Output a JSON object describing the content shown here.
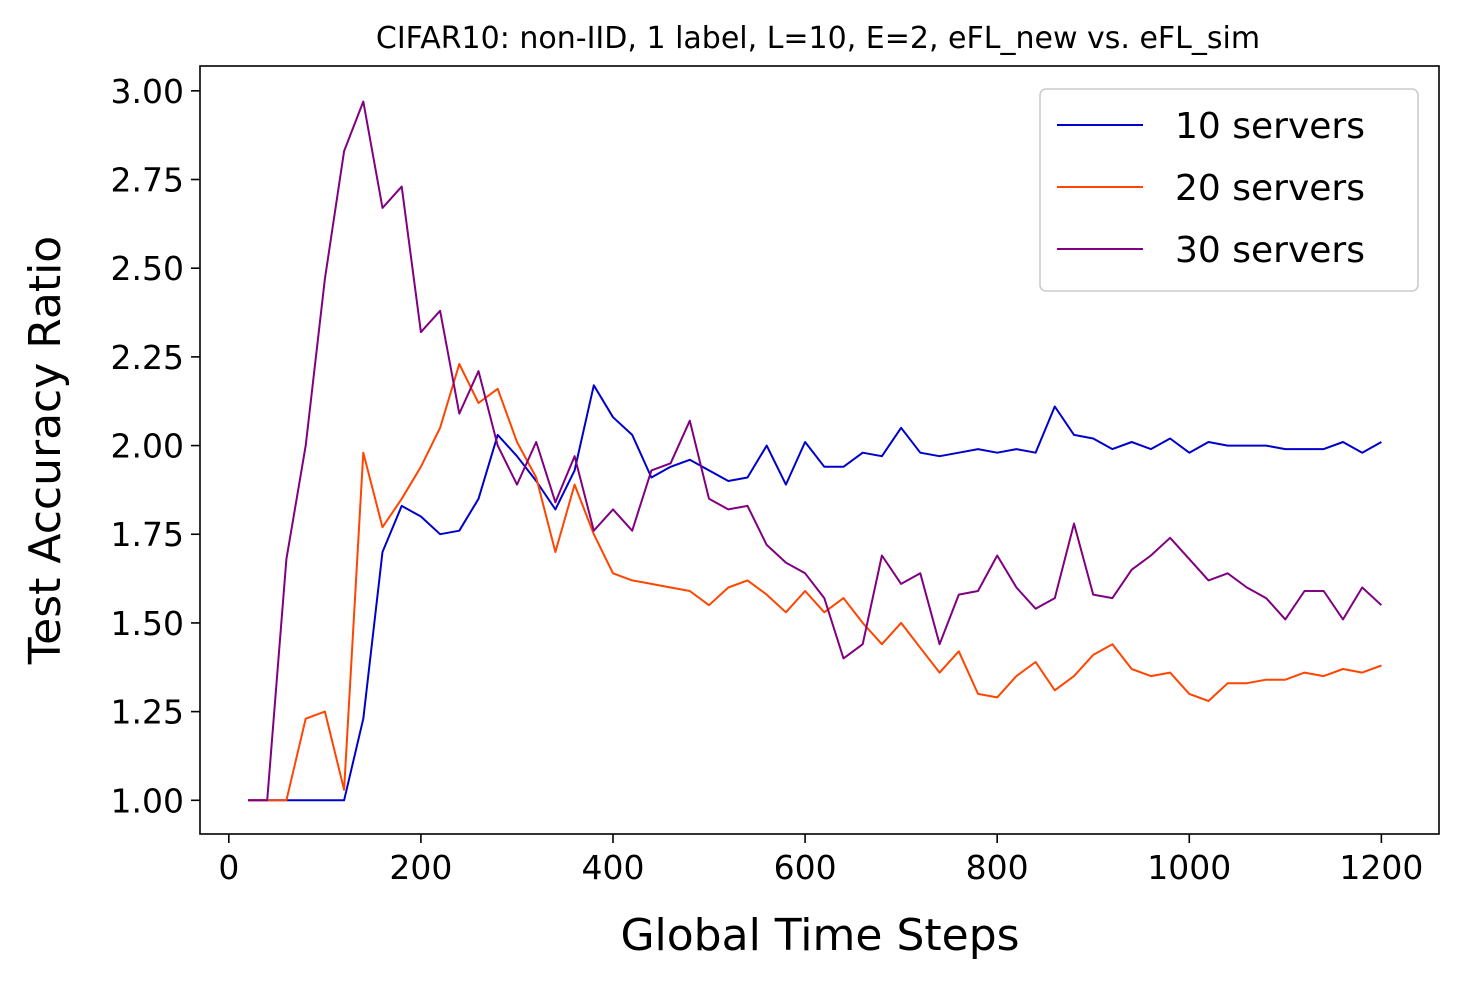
{
  "chart_data": {
    "type": "line",
    "title": "CIFAR10: non-IID, 1 label, L=10, E=2, eFL_new vs. eFL_sim",
    "xlabel": "Global Time Steps",
    "ylabel": "Test Accuracy Ratio",
    "xlim": [
      -30,
      1260
    ],
    "ylim": [
      0.905,
      3.07
    ],
    "xticks": [
      0,
      200,
      400,
      600,
      800,
      1000,
      1200
    ],
    "xtick_labels": [
      "0",
      "200",
      "400",
      "600",
      "800",
      "1000",
      "1200"
    ],
    "yticks": [
      1.0,
      1.25,
      1.5,
      1.75,
      2.0,
      2.25,
      2.5,
      2.75,
      3.0
    ],
    "ytick_labels": [
      "1.00",
      "1.25",
      "1.50",
      "1.75",
      "2.00",
      "2.25",
      "2.50",
      "2.75",
      "3.00"
    ],
    "grid": false,
    "legend_position": "top-right",
    "x": [
      20,
      40,
      60,
      80,
      100,
      120,
      140,
      160,
      180,
      200,
      220,
      240,
      260,
      280,
      300,
      320,
      340,
      360,
      380,
      400,
      420,
      440,
      460,
      480,
      500,
      520,
      540,
      560,
      580,
      600,
      620,
      640,
      660,
      680,
      700,
      720,
      740,
      760,
      780,
      800,
      820,
      840,
      860,
      880,
      900,
      920,
      940,
      960,
      980,
      1000,
      1020,
      1040,
      1060,
      1080,
      1100,
      1120,
      1140,
      1160,
      1180,
      1200
    ],
    "series": [
      {
        "name": "10 servers",
        "color": "#0000cc",
        "values": [
          1.0,
          1.0,
          1.0,
          1.0,
          1.0,
          1.0,
          1.23,
          1.7,
          1.83,
          1.8,
          1.75,
          1.76,
          1.85,
          2.03,
          1.97,
          1.9,
          1.82,
          1.93,
          2.17,
          2.08,
          2.03,
          1.91,
          1.94,
          1.96,
          1.93,
          1.9,
          1.91,
          2.0,
          1.89,
          2.01,
          1.94,
          1.94,
          1.98,
          1.97,
          2.05,
          1.98,
          1.97,
          1.98,
          1.99,
          1.98,
          1.99,
          1.98,
          2.11,
          2.03,
          2.02,
          1.99,
          2.01,
          1.99,
          2.02,
          1.98,
          2.01,
          2.0,
          2.0,
          2.0,
          1.99,
          1.99,
          1.99,
          2.01,
          1.98,
          2.01
        ]
      },
      {
        "name": "20 servers",
        "color": "#ff4500",
        "values": [
          1.0,
          1.0,
          1.0,
          1.23,
          1.25,
          1.03,
          1.98,
          1.77,
          1.85,
          1.94,
          2.05,
          2.23,
          2.12,
          2.16,
          2.01,
          1.91,
          1.7,
          1.89,
          1.75,
          1.64,
          1.62,
          1.61,
          1.6,
          1.59,
          1.55,
          1.6,
          1.62,
          1.58,
          1.53,
          1.59,
          1.53,
          1.57,
          1.5,
          1.44,
          1.5,
          1.43,
          1.36,
          1.42,
          1.3,
          1.29,
          1.35,
          1.39,
          1.31,
          1.35,
          1.41,
          1.44,
          1.37,
          1.35,
          1.36,
          1.3,
          1.28,
          1.33,
          1.33,
          1.34,
          1.34,
          1.36,
          1.35,
          1.37,
          1.36,
          1.38
        ]
      },
      {
        "name": "30 servers",
        "color": "#800080",
        "values": [
          1.0,
          1.0,
          1.68,
          2.0,
          2.47,
          2.83,
          2.97,
          2.67,
          2.73,
          2.32,
          2.38,
          2.09,
          2.21,
          2.0,
          1.89,
          2.01,
          1.84,
          1.97,
          1.76,
          1.82,
          1.76,
          1.93,
          1.95,
          2.07,
          1.85,
          1.82,
          1.83,
          1.72,
          1.67,
          1.64,
          1.57,
          1.4,
          1.44,
          1.69,
          1.61,
          1.64,
          1.44,
          1.58,
          1.59,
          1.69,
          1.6,
          1.54,
          1.57,
          1.78,
          1.58,
          1.57,
          1.65,
          1.69,
          1.74,
          1.68,
          1.62,
          1.64,
          1.6,
          1.57,
          1.51,
          1.59,
          1.59,
          1.51,
          1.6,
          1.55
        ]
      }
    ]
  }
}
